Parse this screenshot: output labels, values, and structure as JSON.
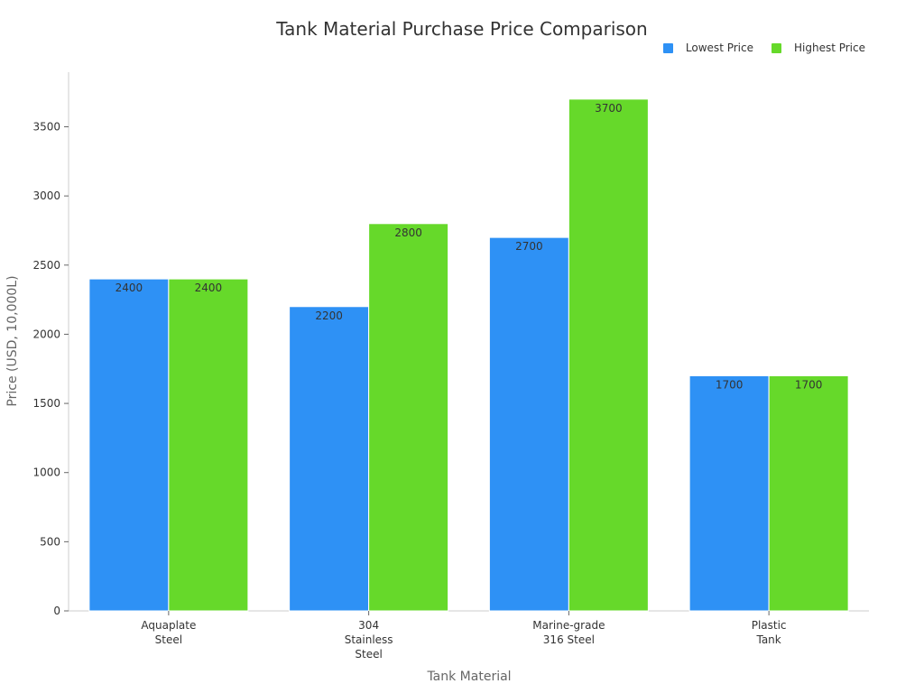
{
  "chart_data": {
    "type": "bar",
    "title": "Tank Material Purchase Price Comparison",
    "xlabel": "Tank Material",
    "ylabel": "Price (USD, 10,000L)",
    "categories": [
      "Aquaplate Steel",
      "304 Stainless Steel",
      "Marine-grade 316 Steel",
      "Plastic Tank"
    ],
    "category_lines": [
      [
        "Aquaplate",
        "Steel"
      ],
      [
        "304",
        "Stainless",
        "Steel"
      ],
      [
        "Marine-grade",
        "316 Steel"
      ],
      [
        "Plastic",
        "Tank"
      ]
    ],
    "series": [
      {
        "name": "Lowest Price",
        "color": "#2e91f5",
        "values": [
          2400,
          2200,
          2700,
          1700
        ]
      },
      {
        "name": "Highest Price",
        "color": "#66d92a",
        "values": [
          2400,
          2800,
          3700,
          1700
        ]
      }
    ],
    "ylim": [
      0,
      3900
    ],
    "yticks": [
      0,
      500,
      1000,
      1500,
      2000,
      2500,
      3000,
      3500
    ],
    "grid": false,
    "legend_position": "top-right",
    "data_labels": true
  },
  "legend": {
    "items": [
      {
        "label": "Lowest Price",
        "color": "#2e91f5"
      },
      {
        "label": "Highest Price",
        "color": "#66d92a"
      }
    ]
  }
}
